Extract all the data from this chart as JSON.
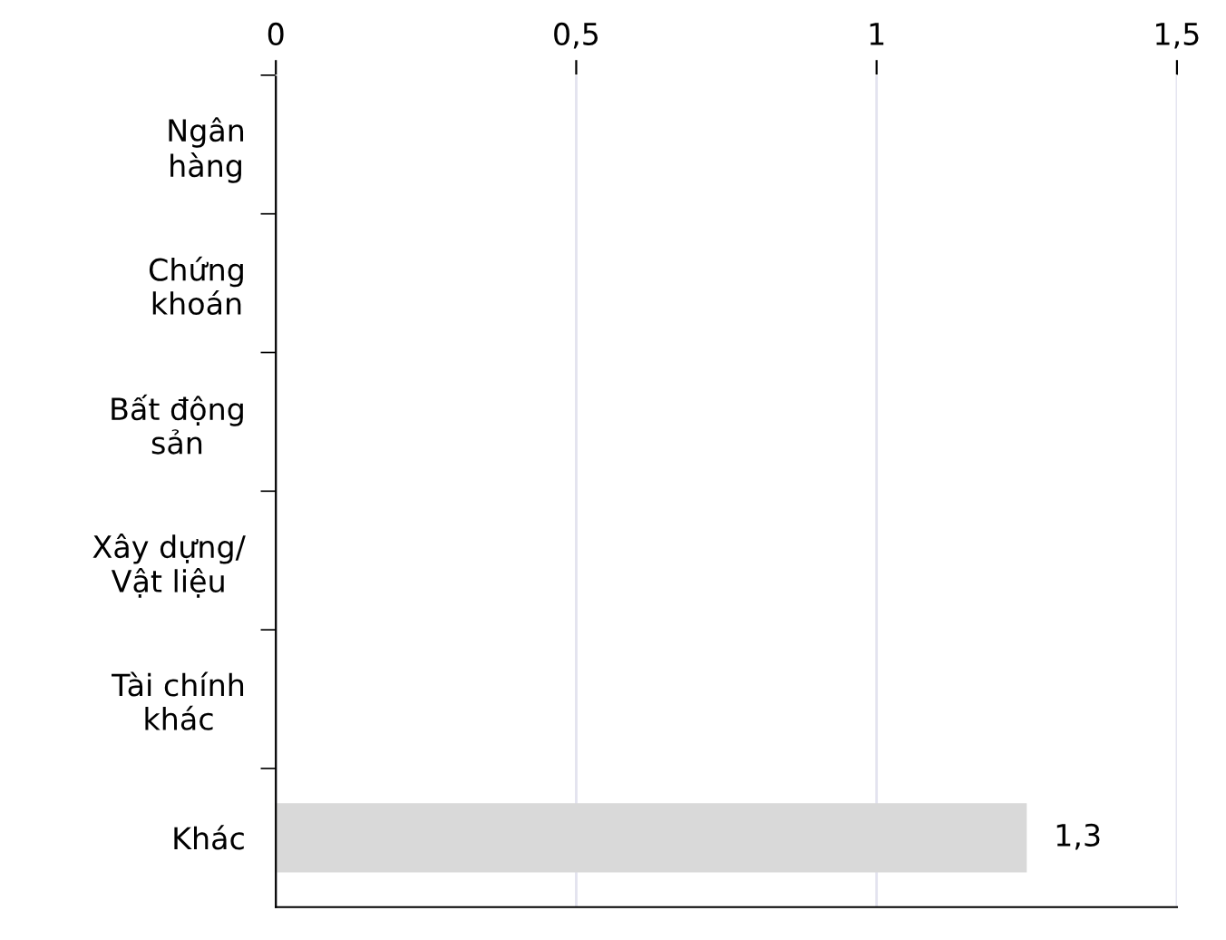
{
  "chart_data": {
    "type": "bar",
    "orientation": "horizontal",
    "categories": [
      "Ngân\nhàng",
      "Chứng\nkhoán",
      "Bất động\nsản",
      "Xây dựng/\nVật liệu",
      "Tài chính\nkhác",
      "Khác"
    ],
    "values": [
      null,
      null,
      null,
      null,
      null,
      1.25
    ],
    "value_labels": [
      null,
      null,
      null,
      null,
      null,
      "1,3"
    ],
    "color": "#d9d9d9",
    "xlim": [
      0,
      1.5
    ],
    "xticks": [
      0,
      {
        "value": 0.5,
        "label": "0,5"
      },
      1,
      {
        "value": 1.5,
        "label": "1,5"
      }
    ],
    "grid": "x"
  }
}
